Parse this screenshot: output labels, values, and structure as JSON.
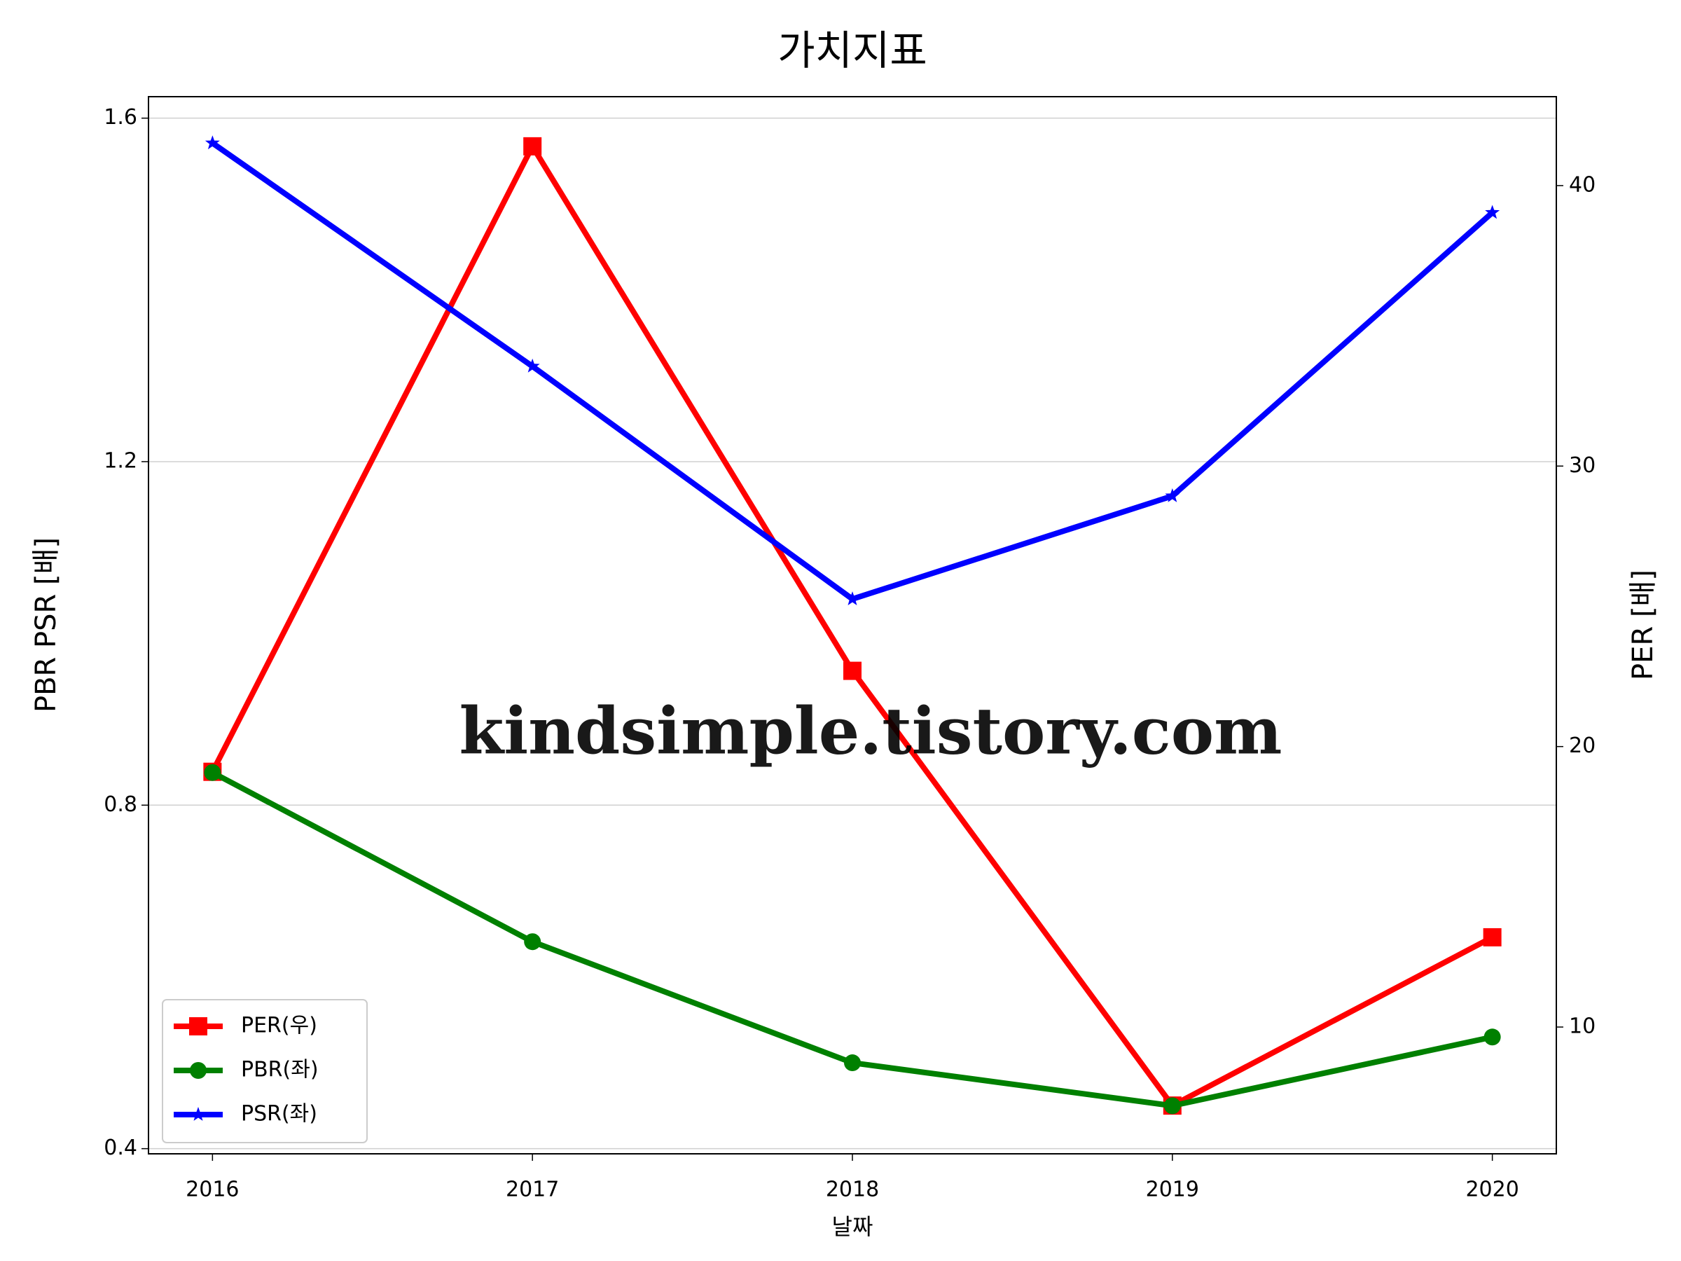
{
  "chart_data": {
    "type": "line",
    "title": "가치지표",
    "xlabel": "날짜",
    "ylabel": "PBR PSR [배]",
    "y2label": "PER [배]",
    "ylabel_color": "#008000",
    "y2label_color": "#ff0000",
    "watermark": "kindsimple.tistory.com",
    "categories": [
      "2016",
      "2017",
      "2018",
      "2019",
      "2020"
    ],
    "ylim": [
      0.394,
      1.625
    ],
    "yticks": [
      0.4,
      0.8,
      1.2,
      1.6
    ],
    "y2lim": [
      5.48,
      43.17
    ],
    "y2ticks": [
      10,
      20,
      30,
      40
    ],
    "grid": true,
    "legend": "lower left",
    "series": [
      {
        "name": "PER(우)",
        "color": "#ff0000",
        "marker": "square",
        "axis": "y2",
        "values": [
          19.1,
          41.4,
          22.7,
          7.2,
          13.2
        ]
      },
      {
        "name": "PBR(좌)",
        "color": "#008000",
        "marker": "circle",
        "values": [
          0.838,
          0.641,
          0.5,
          0.45,
          0.53
        ]
      },
      {
        "name": "PSR(좌)",
        "color": "#0000ff",
        "marker": "star",
        "values": [
          1.571,
          1.311,
          1.04,
          1.16,
          1.49
        ]
      }
    ]
  }
}
